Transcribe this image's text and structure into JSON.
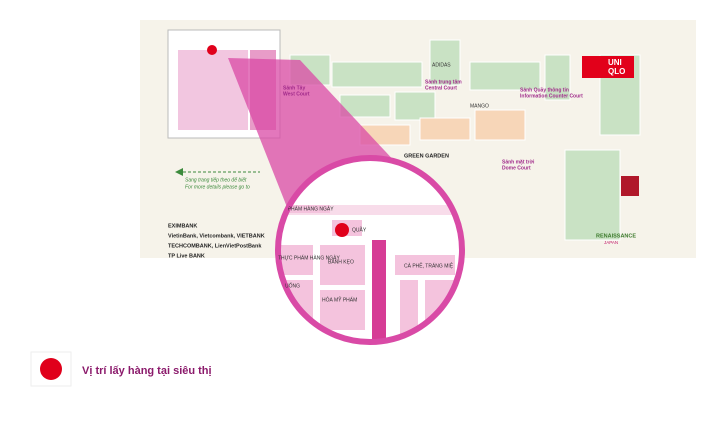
{
  "map": {
    "courts": [
      {
        "vi": "Sảnh Tây",
        "en": "West Court"
      },
      {
        "vi": "Sảnh trung tâm",
        "en": "Central Court"
      },
      {
        "vi": "Sảnh Quầy thông tin",
        "en": "Information Counter Court"
      },
      {
        "vi": "Sảnh mặt trời",
        "en": "Dome Court"
      }
    ],
    "stores": [
      "ADIDAS",
      "MANGO",
      "UNI",
      "QLO",
      "GREEN GARDEN",
      "RENAISSANCE",
      "JAPAN"
    ],
    "note": {
      "vi": "Sang trang tiếp theo để biết",
      "en": "For more details please go to"
    },
    "banks": [
      "EXIMBANK",
      "VietinBank, Vietcombank, VIETBANK",
      "TECHCOMBANK, LienVietPostBank",
      "TP Live BANK"
    ]
  },
  "zoom": {
    "labels": [
      "PH. PHẨM HÀNG NGÀY",
      "QUẦY",
      "THỰC PHẨM HÀNG NGÀY",
      "BÁNH KẸO",
      "CÀ PHÊ, TRÁNG MIỆ",
      "C UỐNG",
      "HÓA MỸ PHẨM"
    ]
  },
  "legend": {
    "label": "Vị trí lấy hàng tại siêu thị"
  }
}
